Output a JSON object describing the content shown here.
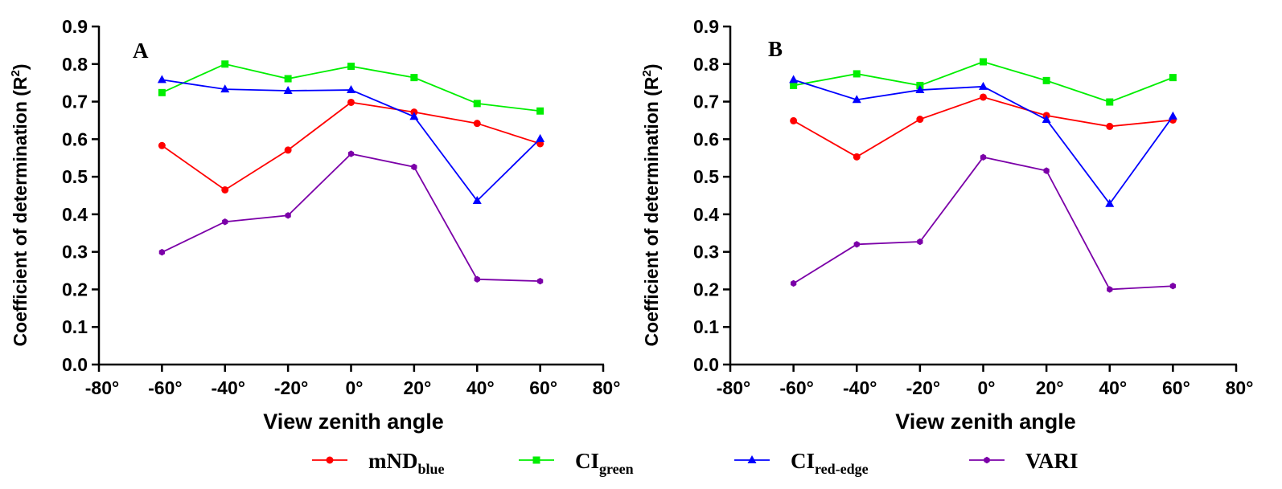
{
  "chart_data": [
    {
      "type": "line",
      "panel_label": "A",
      "xlabel": "View zenith angle",
      "ylabel": "Coefficient of determination (R",
      "ylabel_sup": "2",
      "ylabel_end": ")",
      "xlim": [
        -80,
        80
      ],
      "ylim": [
        0,
        0.9
      ],
      "x_ticks": [
        -80,
        -60,
        -40,
        -20,
        0,
        20,
        40,
        60,
        80
      ],
      "x_tick_labels": [
        "-80°",
        "-60°",
        "-40°",
        "-20°",
        "0°",
        "20°",
        "40°",
        "60°",
        "80°"
      ],
      "y_ticks": [
        0,
        0.1,
        0.2,
        0.3,
        0.4,
        0.5,
        0.6,
        0.7,
        0.8,
        0.9
      ],
      "y_tick_labels": [
        "0.0",
        "0.1",
        "0.2",
        "0.3",
        "0.4",
        "0.5",
        "0.6",
        "0.7",
        "0.8",
        "0.9"
      ],
      "x": [
        -60,
        -40,
        -20,
        0,
        20,
        40,
        60
      ],
      "series": [
        {
          "name": "mND_blue",
          "values": [
            0.583,
            0.465,
            0.571,
            0.698,
            0.672,
            0.642,
            0.588
          ]
        },
        {
          "name": "CI_green",
          "values": [
            0.724,
            0.8,
            0.761,
            0.794,
            0.764,
            0.695,
            0.675
          ]
        },
        {
          "name": "CI_red-edge",
          "values": [
            0.758,
            0.733,
            0.729,
            0.731,
            0.66,
            0.436,
            0.601
          ]
        },
        {
          "name": "VARI",
          "values": [
            0.299,
            0.38,
            0.397,
            0.561,
            0.526,
            0.227,
            0.222
          ]
        }
      ]
    },
    {
      "type": "line",
      "panel_label": "B",
      "xlabel": "View zenith angle",
      "ylabel": "Coefficient of determination (R",
      "ylabel_sup": "2",
      "ylabel_end": ")",
      "xlim": [
        -80,
        80
      ],
      "ylim": [
        0,
        0.9
      ],
      "x_ticks": [
        -80,
        -60,
        -40,
        -20,
        0,
        20,
        40,
        60,
        80
      ],
      "x_tick_labels": [
        "-80°",
        "-60°",
        "-40°",
        "-20°",
        "0°",
        "20°",
        "40°",
        "60°",
        "80°"
      ],
      "y_ticks": [
        0,
        0.1,
        0.2,
        0.3,
        0.4,
        0.5,
        0.6,
        0.7,
        0.8,
        0.9
      ],
      "y_tick_labels": [
        "0.0",
        "0.1",
        "0.2",
        "0.3",
        "0.4",
        "0.5",
        "0.6",
        "0.7",
        "0.8",
        "0.9"
      ],
      "x": [
        -60,
        -40,
        -20,
        0,
        20,
        40,
        60
      ],
      "series": [
        {
          "name": "mND_blue",
          "values": [
            0.649,
            0.553,
            0.653,
            0.712,
            0.663,
            0.634,
            0.651
          ]
        },
        {
          "name": "CI_green",
          "values": [
            0.743,
            0.774,
            0.743,
            0.806,
            0.756,
            0.699,
            0.764
          ]
        },
        {
          "name": "CI_red-edge",
          "values": [
            0.758,
            0.705,
            0.731,
            0.74,
            0.652,
            0.428,
            0.661
          ]
        },
        {
          "name": "VARI",
          "values": [
            0.216,
            0.32,
            0.327,
            0.552,
            0.516,
            0.2,
            0.209
          ]
        }
      ]
    }
  ],
  "legend": {
    "items": [
      {
        "key": "mND_blue",
        "main": "mND",
        "sub": "blue",
        "color": "#ff0000",
        "marker": "circle"
      },
      {
        "key": "CI_green",
        "main": "CI",
        "sub": "green",
        "color": "#00ee00",
        "marker": "square"
      },
      {
        "key": "CI_red-edge",
        "main": "CI",
        "sub": "red-edge",
        "color": "#0000ff",
        "marker": "triangle"
      },
      {
        "key": "VARI",
        "main": "VARI",
        "sub": "",
        "color": "#7b00a8",
        "marker": "hexagon"
      }
    ]
  }
}
